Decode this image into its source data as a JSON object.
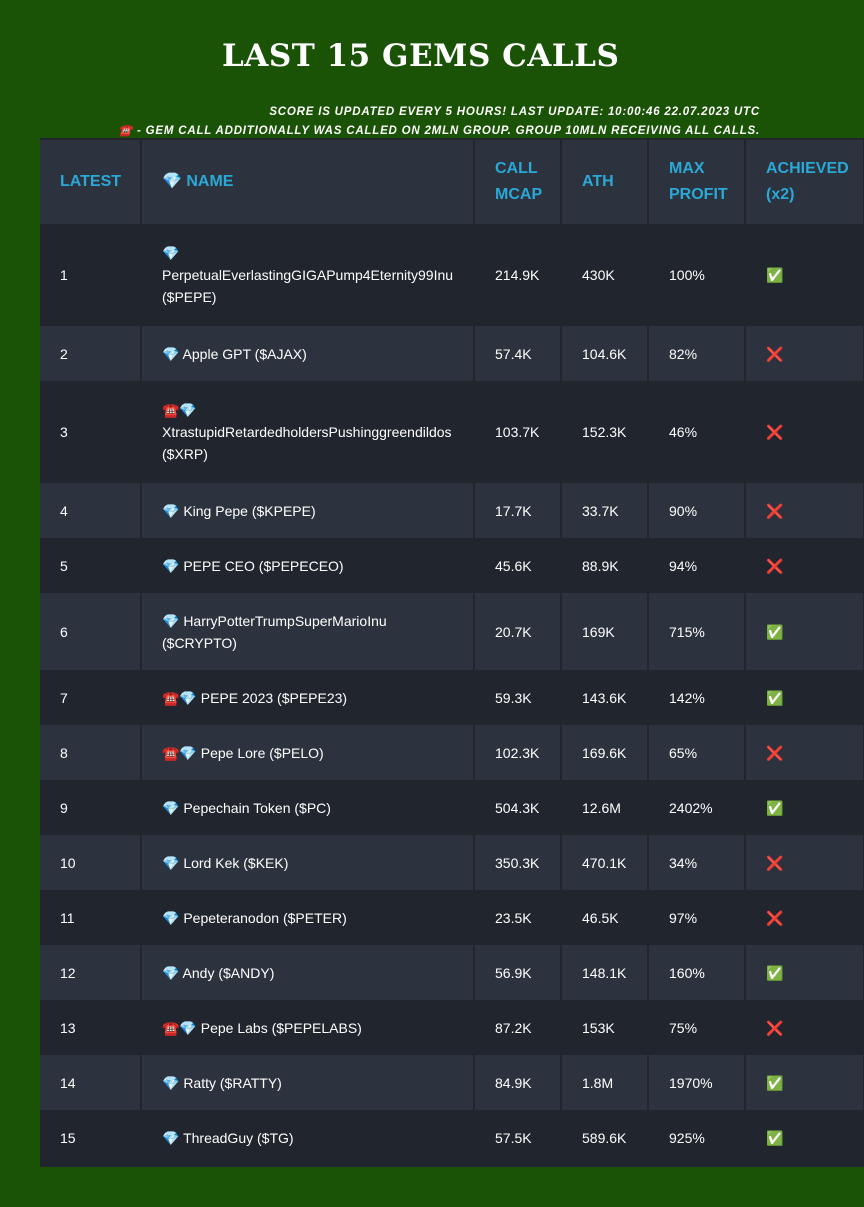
{
  "title": "LAST 15 GEMS CALLS",
  "notes": {
    "update": "SCORE IS UPDATED EVERY 5 HOURS! LAST UPDATE: 10:00:46 22.07.2023 UTC",
    "legend": "☎️ - GEM CALL ADDITIONALLY WAS CALLED ON 2MLN GROUP. GROUP 10MLN RECEIVING ALL CALLS."
  },
  "colors": {
    "background": "#1a5206",
    "header_text": "#2aa8d6",
    "row_dark": "#20252e",
    "row_light": "#2d333e"
  },
  "table": {
    "headers": [
      "LATEST",
      "💎 NAME",
      "CALL MCAP",
      "ATH",
      "MAX PROFIT",
      "ACHIEVED (x2)"
    ],
    "rows": [
      {
        "n": "1",
        "name": "💎 PerpetualEverlastingGIGAPump4Eternity99Inu ($PEPE)",
        "mcap": "214.9K",
        "ath": "430K",
        "profit": "100%",
        "ach": "✅"
      },
      {
        "n": "2",
        "name": "💎 Apple GPT ($AJAX)",
        "mcap": "57.4K",
        "ath": "104.6K",
        "profit": "82%",
        "ach": "❌"
      },
      {
        "n": "3",
        "name": "☎️💎 XtrastupidRetardedholdersPushinggreendildos ($XRP)",
        "mcap": "103.7K",
        "ath": "152.3K",
        "profit": "46%",
        "ach": "❌"
      },
      {
        "n": "4",
        "name": "💎 King Pepe ($KPEPE)",
        "mcap": "17.7K",
        "ath": "33.7K",
        "profit": "90%",
        "ach": "❌"
      },
      {
        "n": "5",
        "name": "💎 PEPE CEO ($PEPECEO)",
        "mcap": "45.6K",
        "ath": "88.9K",
        "profit": "94%",
        "ach": "❌"
      },
      {
        "n": "6",
        "name": "💎 HarryPotterTrumpSuperMarioInu ($CRYPTO)",
        "mcap": "20.7K",
        "ath": "169K",
        "profit": "715%",
        "ach": "✅"
      },
      {
        "n": "7",
        "name": "☎️💎 PEPE 2023 ($PEPE23)",
        "mcap": "59.3K",
        "ath": "143.6K",
        "profit": "142%",
        "ach": "✅"
      },
      {
        "n": "8",
        "name": "☎️💎 Pepe Lore ($PELO)",
        "mcap": "102.3K",
        "ath": "169.6K",
        "profit": "65%",
        "ach": "❌"
      },
      {
        "n": "9",
        "name": "💎 Pepechain Token ($PC)",
        "mcap": "504.3K",
        "ath": "12.6M",
        "profit": "2402%",
        "ach": "✅"
      },
      {
        "n": "10",
        "name": "💎 Lord Kek ($KEK)",
        "mcap": "350.3K",
        "ath": "470.1K",
        "profit": "34%",
        "ach": "❌"
      },
      {
        "n": "11",
        "name": "💎 Pepeteranodon ($PETER)",
        "mcap": "23.5K",
        "ath": "46.5K",
        "profit": "97%",
        "ach": "❌"
      },
      {
        "n": "12",
        "name": "💎 Andy ($ANDY)",
        "mcap": "56.9K",
        "ath": "148.1K",
        "profit": "160%",
        "ach": "✅"
      },
      {
        "n": "13",
        "name": "☎️💎 Pepe Labs ($PEPELABS)",
        "mcap": "87.2K",
        "ath": "153K",
        "profit": "75%",
        "ach": "❌"
      },
      {
        "n": "14",
        "name": "💎 Ratty ($RATTY)",
        "mcap": "84.9K",
        "ath": "1.8M",
        "profit": "1970%",
        "ach": "✅"
      },
      {
        "n": "15",
        "name": "💎 ThreadGuy ($TG)",
        "mcap": "57.5K",
        "ath": "589.6K",
        "profit": "925%",
        "ach": "✅"
      }
    ]
  }
}
